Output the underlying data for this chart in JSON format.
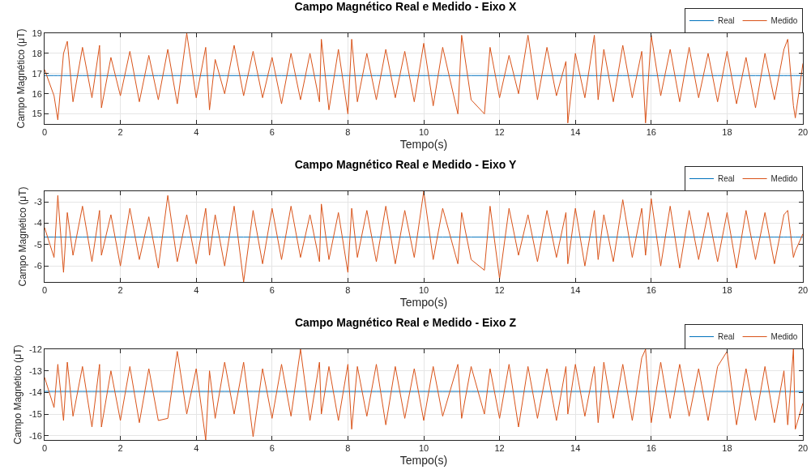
{
  "chart_data": [
    {
      "type": "line",
      "title": "Campo Magnético Real e Medido - Eixo X",
      "xlabel": "Tempo(s)",
      "ylabel": "Campo Magnético (μT)",
      "x": [
        0,
        0.25,
        0.35,
        0.5,
        0.6,
        0.75,
        1.0,
        1.25,
        1.45,
        1.5,
        1.75,
        2.0,
        2.25,
        2.5,
        2.75,
        3.0,
        3.25,
        3.5,
        3.75,
        4.0,
        4.25,
        4.35,
        4.5,
        4.75,
        5.0,
        5.25,
        5.5,
        5.75,
        6.0,
        6.25,
        6.5,
        6.75,
        7.0,
        7.25,
        7.3,
        7.5,
        7.75,
        8.0,
        8.1,
        8.25,
        8.5,
        8.75,
        9.0,
        9.25,
        9.5,
        9.75,
        10.0,
        10.25,
        10.5,
        10.9,
        11.0,
        11.25,
        11.6,
        11.75,
        12.0,
        12.25,
        12.5,
        12.75,
        13.0,
        13.25,
        13.5,
        13.75,
        13.8,
        14.0,
        14.25,
        14.5,
        14.6,
        14.75,
        15.0,
        15.25,
        15.5,
        15.75,
        15.85,
        16.0,
        16.25,
        16.5,
        16.75,
        17.0,
        17.25,
        17.5,
        17.75,
        18.0,
        18.25,
        18.5,
        18.75,
        19.0,
        19.25,
        19.5,
        19.6,
        19.75,
        19.8,
        20.0
      ],
      "series": [
        {
          "name": "Real",
          "color": "#0072bd",
          "values": [
            16.9,
            16.9,
            16.9,
            16.9,
            16.9,
            16.9,
            16.9,
            16.9,
            16.9,
            16.9,
            16.9,
            16.9,
            16.9,
            16.9,
            16.9,
            16.9,
            16.9,
            16.9,
            16.9,
            16.9,
            16.9,
            16.9,
            16.9,
            16.9,
            16.9,
            16.9,
            16.9,
            16.9,
            16.9,
            16.9,
            16.9,
            16.9,
            16.9,
            16.9,
            16.9,
            16.9,
            16.9,
            16.9,
            16.9,
            16.9,
            16.9,
            16.9,
            16.9,
            16.9,
            16.9,
            16.9,
            16.9,
            16.9,
            16.9,
            16.9,
            16.9,
            16.9,
            16.9,
            16.9,
            16.9,
            16.9,
            16.9,
            16.9,
            16.9,
            16.9,
            16.9,
            16.9,
            16.9,
            16.9,
            16.9,
            16.9,
            16.9,
            16.9,
            16.9,
            16.9,
            16.9,
            16.9,
            16.9,
            16.9,
            16.9,
            16.9,
            16.9,
            16.9,
            16.9,
            16.9,
            16.9,
            16.9,
            16.9,
            16.9,
            16.9,
            16.9,
            16.9,
            16.9,
            16.9,
            16.9,
            16.9,
            16.9
          ]
        },
        {
          "name": "Medido",
          "color": "#d95319",
          "values": [
            17.2,
            15.9,
            14.7,
            18.0,
            18.6,
            15.6,
            18.3,
            15.8,
            18.4,
            15.3,
            17.8,
            15.9,
            18.1,
            15.6,
            17.9,
            15.7,
            18.2,
            15.5,
            19.0,
            15.8,
            18.3,
            15.2,
            17.7,
            16.0,
            18.4,
            15.9,
            18.1,
            15.8,
            17.8,
            15.5,
            18.0,
            15.7,
            18.0,
            15.6,
            18.7,
            15.2,
            18.2,
            15.0,
            18.7,
            15.6,
            18.0,
            15.7,
            18.2,
            15.8,
            18.1,
            15.6,
            18.5,
            15.4,
            18.3,
            15.0,
            18.9,
            15.7,
            15.0,
            18.3,
            15.8,
            17.9,
            16.0,
            18.9,
            15.7,
            18.3,
            15.9,
            17.6,
            14.55,
            18.0,
            15.8,
            18.9,
            15.7,
            18.2,
            15.6,
            18.4,
            15.8,
            18.1,
            14.55,
            18.9,
            15.9,
            18.2,
            15.6,
            18.3,
            15.8,
            18.0,
            15.6,
            18.1,
            15.5,
            17.8,
            15.3,
            18.0,
            15.7,
            18.2,
            18.7,
            15.4,
            14.8,
            17.5
          ]
        }
      ],
      "xlim": [
        0,
        20
      ],
      "xticks": [
        0,
        2,
        4,
        6,
        8,
        10,
        12,
        14,
        16,
        18,
        20
      ],
      "ylim": [
        14.5,
        19
      ],
      "yticks": [
        15,
        16,
        17,
        18,
        19
      ],
      "grid": true,
      "legend": "top right"
    },
    {
      "type": "line",
      "title": "Campo Magnético Real e Medido - Eixo Y",
      "xlabel": "Tempo(s)",
      "ylabel": "Campo Magnético (μT)",
      "x": [
        0,
        0.25,
        0.35,
        0.5,
        0.6,
        0.75,
        1.0,
        1.25,
        1.45,
        1.5,
        1.75,
        2.0,
        2.25,
        2.5,
        2.75,
        3.0,
        3.25,
        3.5,
        3.75,
        4.0,
        4.25,
        4.35,
        4.5,
        4.75,
        5.0,
        5.25,
        5.5,
        5.75,
        6.0,
        6.25,
        6.5,
        6.75,
        7.0,
        7.25,
        7.3,
        7.5,
        7.75,
        8.0,
        8.1,
        8.25,
        8.5,
        8.75,
        9.0,
        9.25,
        9.5,
        9.75,
        10.0,
        10.25,
        10.5,
        10.9,
        11.0,
        11.25,
        11.6,
        11.75,
        12.0,
        12.25,
        12.5,
        12.75,
        13.0,
        13.25,
        13.5,
        13.75,
        13.8,
        14.0,
        14.25,
        14.5,
        14.6,
        14.75,
        15.0,
        15.25,
        15.5,
        15.75,
        15.85,
        16.0,
        16.25,
        16.5,
        16.75,
        17.0,
        17.25,
        17.5,
        17.75,
        18.0,
        18.25,
        18.5,
        18.75,
        19.0,
        19.25,
        19.5,
        19.6,
        19.75,
        19.8,
        20.0
      ],
      "series": [
        {
          "name": "Real",
          "color": "#0072bd",
          "values": [
            -4.65,
            -4.65,
            -4.65,
            -4.65,
            -4.65,
            -4.65,
            -4.65,
            -4.65,
            -4.65,
            -4.65,
            -4.65,
            -4.65,
            -4.65,
            -4.65,
            -4.65,
            -4.65,
            -4.65,
            -4.65,
            -4.65,
            -4.65,
            -4.65,
            -4.65,
            -4.65,
            -4.65,
            -4.65,
            -4.65,
            -4.65,
            -4.65,
            -4.65,
            -4.65,
            -4.65,
            -4.65,
            -4.65,
            -4.65,
            -4.65,
            -4.65,
            -4.65,
            -4.65,
            -4.65,
            -4.65,
            -4.65,
            -4.65,
            -4.65,
            -4.65,
            -4.65,
            -4.65,
            -4.65,
            -4.65,
            -4.65,
            -4.65,
            -4.65,
            -4.65,
            -4.65,
            -4.65,
            -4.65,
            -4.65,
            -4.65,
            -4.65,
            -4.65,
            -4.65,
            -4.65,
            -4.65,
            -4.65,
            -4.65,
            -4.65,
            -4.65,
            -4.65,
            -4.65,
            -4.65,
            -4.65,
            -4.65,
            -4.65,
            -4.65,
            -4.65,
            -4.65,
            -4.65,
            -4.65,
            -4.65,
            -4.65,
            -4.65,
            -4.65,
            -4.65,
            -4.65,
            -4.65,
            -4.65,
            -4.65,
            -4.65,
            -4.65,
            -4.65,
            -4.65,
            -4.65,
            -4.65
          ]
        },
        {
          "name": "Medido",
          "color": "#d95319",
          "values": [
            -4.2,
            -5.6,
            -2.7,
            -6.3,
            -3.5,
            -5.5,
            -3.2,
            -5.8,
            -3.4,
            -5.5,
            -3.6,
            -6.0,
            -3.3,
            -5.7,
            -3.7,
            -6.1,
            -2.7,
            -5.8,
            -3.6,
            -5.9,
            -3.3,
            -5.5,
            -3.6,
            -6.0,
            -3.2,
            -6.75,
            -3.4,
            -5.9,
            -3.3,
            -5.7,
            -3.2,
            -5.6,
            -3.6,
            -5.8,
            -3.1,
            -5.7,
            -3.5,
            -6.3,
            -3.3,
            -5.6,
            -3.4,
            -5.8,
            -3.2,
            -5.9,
            -3.4,
            -5.6,
            -2.5,
            -5.7,
            -3.3,
            -5.9,
            -3.5,
            -5.7,
            -6.2,
            -3.2,
            -6.6,
            -3.3,
            -5.5,
            -3.6,
            -5.8,
            -3.4,
            -5.6,
            -3.5,
            -5.9,
            -3.3,
            -6.0,
            -3.4,
            -5.7,
            -3.6,
            -5.8,
            -2.9,
            -5.6,
            -3.3,
            -5.5,
            -2.85,
            -6.0,
            -3.2,
            -6.1,
            -3.4,
            -5.7,
            -3.5,
            -5.8,
            -3.5,
            -6.1,
            -3.4,
            -5.7,
            -3.5,
            -5.9,
            -3.6,
            -3.4,
            -5.6,
            -5.3,
            -4.5
          ]
        }
      ],
      "xlim": [
        0,
        20
      ],
      "xticks": [
        0,
        2,
        4,
        6,
        8,
        10,
        12,
        14,
        16,
        18,
        20
      ],
      "ylim": [
        -6.75,
        -2.5
      ],
      "yticks": [
        -6,
        -5,
        -4,
        -3
      ],
      "grid": true,
      "legend": "top right"
    },
    {
      "type": "line",
      "title": "Campo Magnético Real e Medido - Eixo Z",
      "xlabel": "Tempo(s)",
      "ylabel": "Campo Magnético (μT)",
      "x": [
        0,
        0.25,
        0.35,
        0.5,
        0.6,
        0.75,
        1.0,
        1.25,
        1.45,
        1.5,
        1.75,
        2.0,
        2.25,
        2.5,
        2.75,
        3.0,
        3.25,
        3.5,
        3.75,
        4.0,
        4.25,
        4.35,
        4.5,
        4.75,
        5.0,
        5.25,
        5.5,
        5.75,
        6.0,
        6.25,
        6.5,
        6.75,
        7.0,
        7.25,
        7.3,
        7.5,
        7.75,
        8.0,
        8.1,
        8.25,
        8.5,
        8.75,
        9.0,
        9.25,
        9.5,
        9.75,
        10.0,
        10.25,
        10.5,
        10.9,
        11.0,
        11.25,
        11.6,
        11.75,
        12.0,
        12.25,
        12.5,
        12.75,
        13.0,
        13.25,
        13.5,
        13.75,
        13.8,
        14.0,
        14.25,
        14.5,
        14.6,
        14.75,
        15.0,
        15.25,
        15.5,
        15.75,
        15.85,
        16.0,
        16.25,
        16.5,
        16.75,
        17.0,
        17.25,
        17.5,
        17.75,
        18.0,
        18.25,
        18.5,
        18.75,
        19.0,
        19.25,
        19.5,
        19.6,
        19.75,
        19.8,
        20.0
      ],
      "series": [
        {
          "name": "Real",
          "color": "#0072bd",
          "values": [
            -13.95,
            -13.95,
            -13.95,
            -13.95,
            -13.95,
            -13.95,
            -13.95,
            -13.95,
            -13.95,
            -13.95,
            -13.95,
            -13.95,
            -13.95,
            -13.95,
            -13.95,
            -13.95,
            -13.95,
            -13.95,
            -13.95,
            -13.95,
            -13.95,
            -13.95,
            -13.95,
            -13.95,
            -13.95,
            -13.95,
            -13.95,
            -13.95,
            -13.95,
            -13.95,
            -13.95,
            -13.95,
            -13.95,
            -13.95,
            -13.95,
            -13.95,
            -13.95,
            -13.95,
            -13.95,
            -13.95,
            -13.95,
            -13.95,
            -13.95,
            -13.95,
            -13.95,
            -13.95,
            -13.95,
            -13.95,
            -13.95,
            -13.95,
            -13.95,
            -13.95,
            -13.95,
            -13.95,
            -13.95,
            -13.95,
            -13.95,
            -13.95,
            -13.95,
            -13.95,
            -13.95,
            -13.95,
            -13.95,
            -13.95,
            -13.95,
            -13.95,
            -13.95,
            -13.95,
            -13.95,
            -13.95,
            -13.95,
            -13.95,
            -13.95,
            -13.95,
            -13.95,
            -13.95,
            -13.95,
            -13.95,
            -13.95,
            -13.95,
            -13.95,
            -13.95,
            -13.95,
            -13.95,
            -13.95,
            -13.95,
            -13.95,
            -13.95,
            -13.95,
            -13.95,
            -13.95,
            -13.95
          ]
        },
        {
          "name": "Medido",
          "color": "#d95319",
          "values": [
            -13.3,
            -14.7,
            -12.7,
            -15.3,
            -12.6,
            -15.1,
            -12.8,
            -15.6,
            -12.7,
            -15.6,
            -13.0,
            -15.3,
            -12.8,
            -15.4,
            -12.9,
            -15.3,
            -15.2,
            -12.1,
            -15.0,
            -12.9,
            -16.2,
            -13.0,
            -15.2,
            -12.6,
            -15.0,
            -12.6,
            -16.05,
            -12.9,
            -15.2,
            -12.7,
            -15.1,
            -12.0,
            -15.3,
            -12.6,
            -15.0,
            -12.8,
            -15.3,
            -12.7,
            -15.7,
            -12.8,
            -15.1,
            -12.7,
            -15.5,
            -12.8,
            -15.2,
            -12.9,
            -15.3,
            -12.8,
            -15.1,
            -12.7,
            -15.2,
            -12.8,
            -15.0,
            -12.9,
            -15.2,
            -12.7,
            -15.6,
            -12.8,
            -15.2,
            -12.9,
            -15.3,
            -12.8,
            -15.0,
            -12.7,
            -15.1,
            -12.8,
            -15.4,
            -12.6,
            -15.2,
            -12.7,
            -15.3,
            -12.4,
            -12.0,
            -15.4,
            -12.6,
            -15.2,
            -12.7,
            -15.1,
            -12.9,
            -15.3,
            -12.8,
            -12.1,
            -15.5,
            -12.9,
            -15.3,
            -12.8,
            -15.4,
            -13.0,
            -15.5,
            -12.0,
            -15.7,
            -14.5
          ]
        }
      ],
      "xlim": [
        0,
        20
      ],
      "xticks": [
        0,
        2,
        4,
        6,
        8,
        10,
        12,
        14,
        16,
        18,
        20
      ],
      "ylim": [
        -16.2,
        -12
      ],
      "yticks": [
        -16,
        -15,
        -14,
        -13,
        -12
      ],
      "grid": true,
      "legend": "top right"
    }
  ]
}
